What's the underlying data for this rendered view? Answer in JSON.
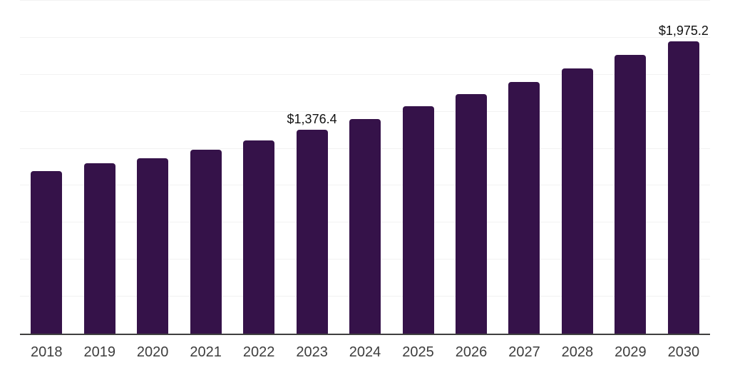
{
  "chart_data": {
    "type": "bar",
    "title": "",
    "xlabel": "",
    "ylabel": "",
    "categories": [
      "2018",
      "2019",
      "2020",
      "2021",
      "2022",
      "2023",
      "2024",
      "2025",
      "2026",
      "2027",
      "2028",
      "2029",
      "2030"
    ],
    "values": [
      1100,
      1151,
      1183,
      1242,
      1308,
      1376.4,
      1451,
      1535,
      1617,
      1702,
      1793,
      1886,
      1975.2
    ],
    "data_labels": [
      {
        "category": "2023",
        "text": "$1,376.4"
      },
      {
        "category": "2030",
        "text": "$1,975.2"
      }
    ],
    "value_prefix": "$",
    "ylim": [
      0,
      2250
    ],
    "gridline_interval": 250,
    "grid": true,
    "y_axis_tick_labels_shown": false,
    "legend_position": "none"
  },
  "colors": {
    "background": "#ffffff",
    "bar": "#351249",
    "gridline": "#f2f2f2",
    "axis_line": "#3f3f3f",
    "tick_label": "#3d3d3d",
    "data_label": "#111111"
  }
}
